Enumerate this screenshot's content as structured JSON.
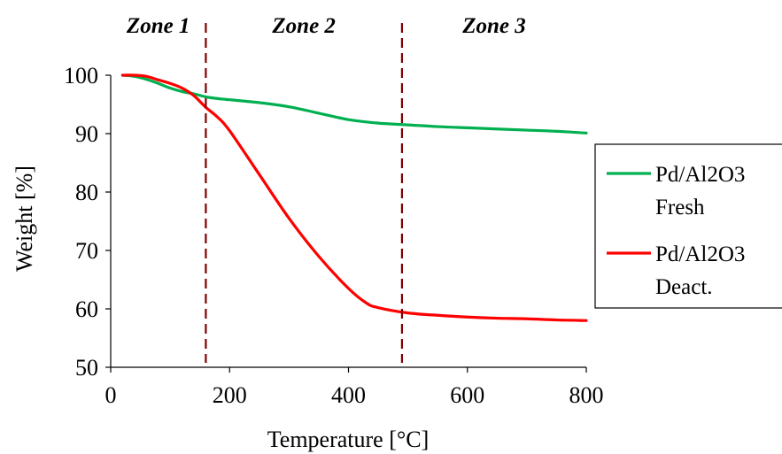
{
  "chart_data": {
    "type": "line",
    "xlabel": "Temperature [°C]",
    "ylabel": "Weight [%]",
    "xlim": [
      0,
      800
    ],
    "ylim": [
      50,
      105
    ],
    "xticks": [
      0,
      200,
      400,
      600,
      800
    ],
    "yticks": [
      50,
      60,
      70,
      80,
      90,
      100
    ],
    "grid": false,
    "legend_position": "right",
    "zones": [
      {
        "label": "Zone 1",
        "center": 80
      },
      {
        "label": "Zone 2",
        "center": 325
      },
      {
        "label": "Zone 3",
        "center": 645
      }
    ],
    "zone_boundaries": [
      160,
      490
    ],
    "series": [
      {
        "name": "Pd/Al2O3 Fresh",
        "legend_lines": [
          "Pd/Al2O3",
          "Fresh"
        ],
        "color": "#00b050",
        "x": [
          20,
          40,
          60,
          80,
          100,
          120,
          140,
          160,
          180,
          200,
          250,
          300,
          350,
          400,
          450,
          500,
          550,
          600,
          650,
          700,
          750,
          800
        ],
        "y": [
          100,
          99.8,
          99.3,
          98.6,
          97.8,
          97.2,
          96.8,
          96.3,
          96.0,
          95.8,
          95.3,
          94.6,
          93.5,
          92.4,
          91.8,
          91.5,
          91.2,
          91.0,
          90.8,
          90.6,
          90.4,
          90.1
        ]
      },
      {
        "name": "Pd/Al2O3 Deact.",
        "legend_lines": [
          "Pd/Al2O3",
          "Deact."
        ],
        "color": "#ff0000",
        "x": [
          20,
          40,
          60,
          80,
          100,
          120,
          140,
          160,
          180,
          200,
          250,
          300,
          350,
          400,
          430,
          450,
          500,
          550,
          600,
          650,
          700,
          750,
          800
        ],
        "y": [
          100,
          100,
          99.8,
          99.2,
          98.6,
          97.8,
          96.5,
          94.5,
          92.8,
          90.5,
          83.0,
          75.5,
          69.0,
          63.5,
          61.0,
          60.2,
          59.3,
          58.9,
          58.6,
          58.4,
          58.3,
          58.1,
          58.0
        ]
      }
    ]
  }
}
